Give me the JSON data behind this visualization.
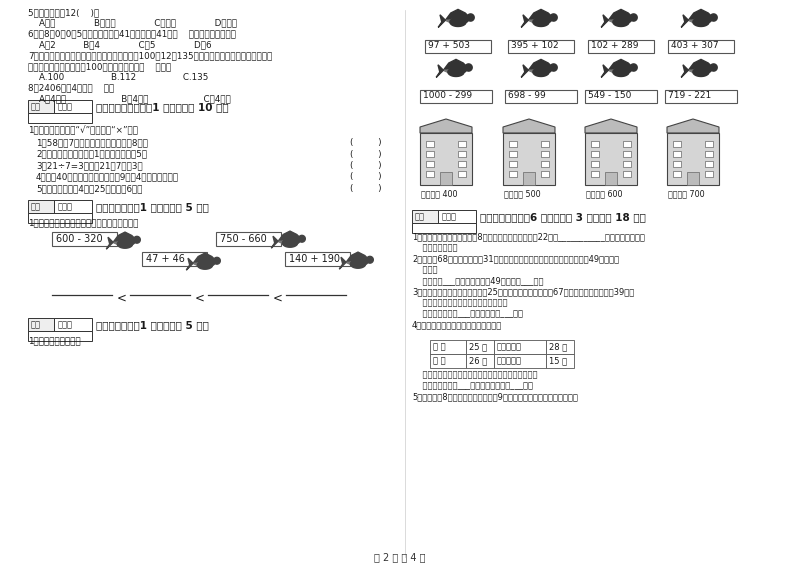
{
  "bg_color": "#ffffff",
  "q5_to_q8": [
    "5．一块橡皮厘12(    )。",
    "    A．米              B．分米              C．厘米              D．毫米",
    "6．用8、0、0、5四张数字卡片摔41位数，能摔41成（    ）个不同的四位数。",
    "    A．2          B．4              C．5              D．6",
    "7．小红、小芳和小兰进行跳绳比赛，她们跳了100、12、135下，小红说：「我跳的不是最多」",
    "。小芳说：「我刚好跳到100下」。小兰跳了（    ）下。",
    "    A.100                 B.112                 C.135",
    "8．2406中的4表示（    ）。",
    "    A．4个百                    B．4个十                    C．4个一"
  ],
  "s5_header": "五、判断对与错（共1 大题，共计 10 分）",
  "s5_sub": "1．判断。（对的打“√”，错的打“×”）。",
  "s5_items": [
    "1．58元瀂7元一支的钐笔，最多可以8支。",
    "2．算盘的一个下珠表全1，一个上珠表示5。",
    "3．21÷7=3，读作21除7等于3。",
    "4．要偐40个订案，每天最多可以9个，4天可以全部停。",
    "5．儿童读物每本4元，25元錢可以6本。"
  ],
  "s6_header": "六、比一比（共1 大题，共计 5 分）",
  "s6_sub": "1．把下列算式按得数大小，从小到大排一行。",
  "s7_header": "七、连一连（共1 大题，共计 5 分）",
  "s7_sub": "1．估一估，连一连。",
  "right_row1_exprs": [
    "97 + 503",
    "395 + 102",
    "102 + 289",
    "403 + 307"
  ],
  "right_row2_exprs": [
    "1000 - 299",
    "698 - 99",
    "549 - 150",
    "719 - 221"
  ],
  "right_build_labels": [
    "得数接近 400",
    "得数大约 500",
    "得数接近 600",
    "得数大约 700"
  ],
  "s8_header": "八、解决问题（共6 小题，每题 3 分，共计 18 分）",
  "s8_items": [
    "1．同学打野小旗，小黄旗有8面，小红旗的比小黄旗多22面，___________？（先提出问题，",
    "    再列式计算。）",
    "2．停车圴68辆小汽车，开货31辆，还剩下多少辆？又开米辆，现在停车圴49有小汽车",
    "    多辆？",
    "    答：还剩___辆，现在停车圴49有小汽车___辆。",
    "3．实验小学二年级订《数学报》25份，三年级比二年级多订67份，四年级比三年级少39份，",
    "    三年级订了多少份？四年级订多少份？",
    "    答：三年级订了___份，四年级订___份。",
    "4．李星在自己班调查，得到如下数据："
  ],
  "table_rows": [
    [
      "男 生",
      "25 人",
      "会下围棋的",
      "28 人"
    ],
    [
      "女 生",
      "26 人",
      "会下象棋的",
      "15 人"
    ]
  ],
  "s8_extra": [
    "    她们班中，不会下围棋和不会下象棋的各有多少人？",
    "    答：不会下围棋___人，不会下象棋的___人。",
    "5．小刚存了8元，小兵存的是小刚的9倍，小兵和小刚一共存了多少錢？"
  ],
  "page_num": "第 2 页 共 4 页"
}
